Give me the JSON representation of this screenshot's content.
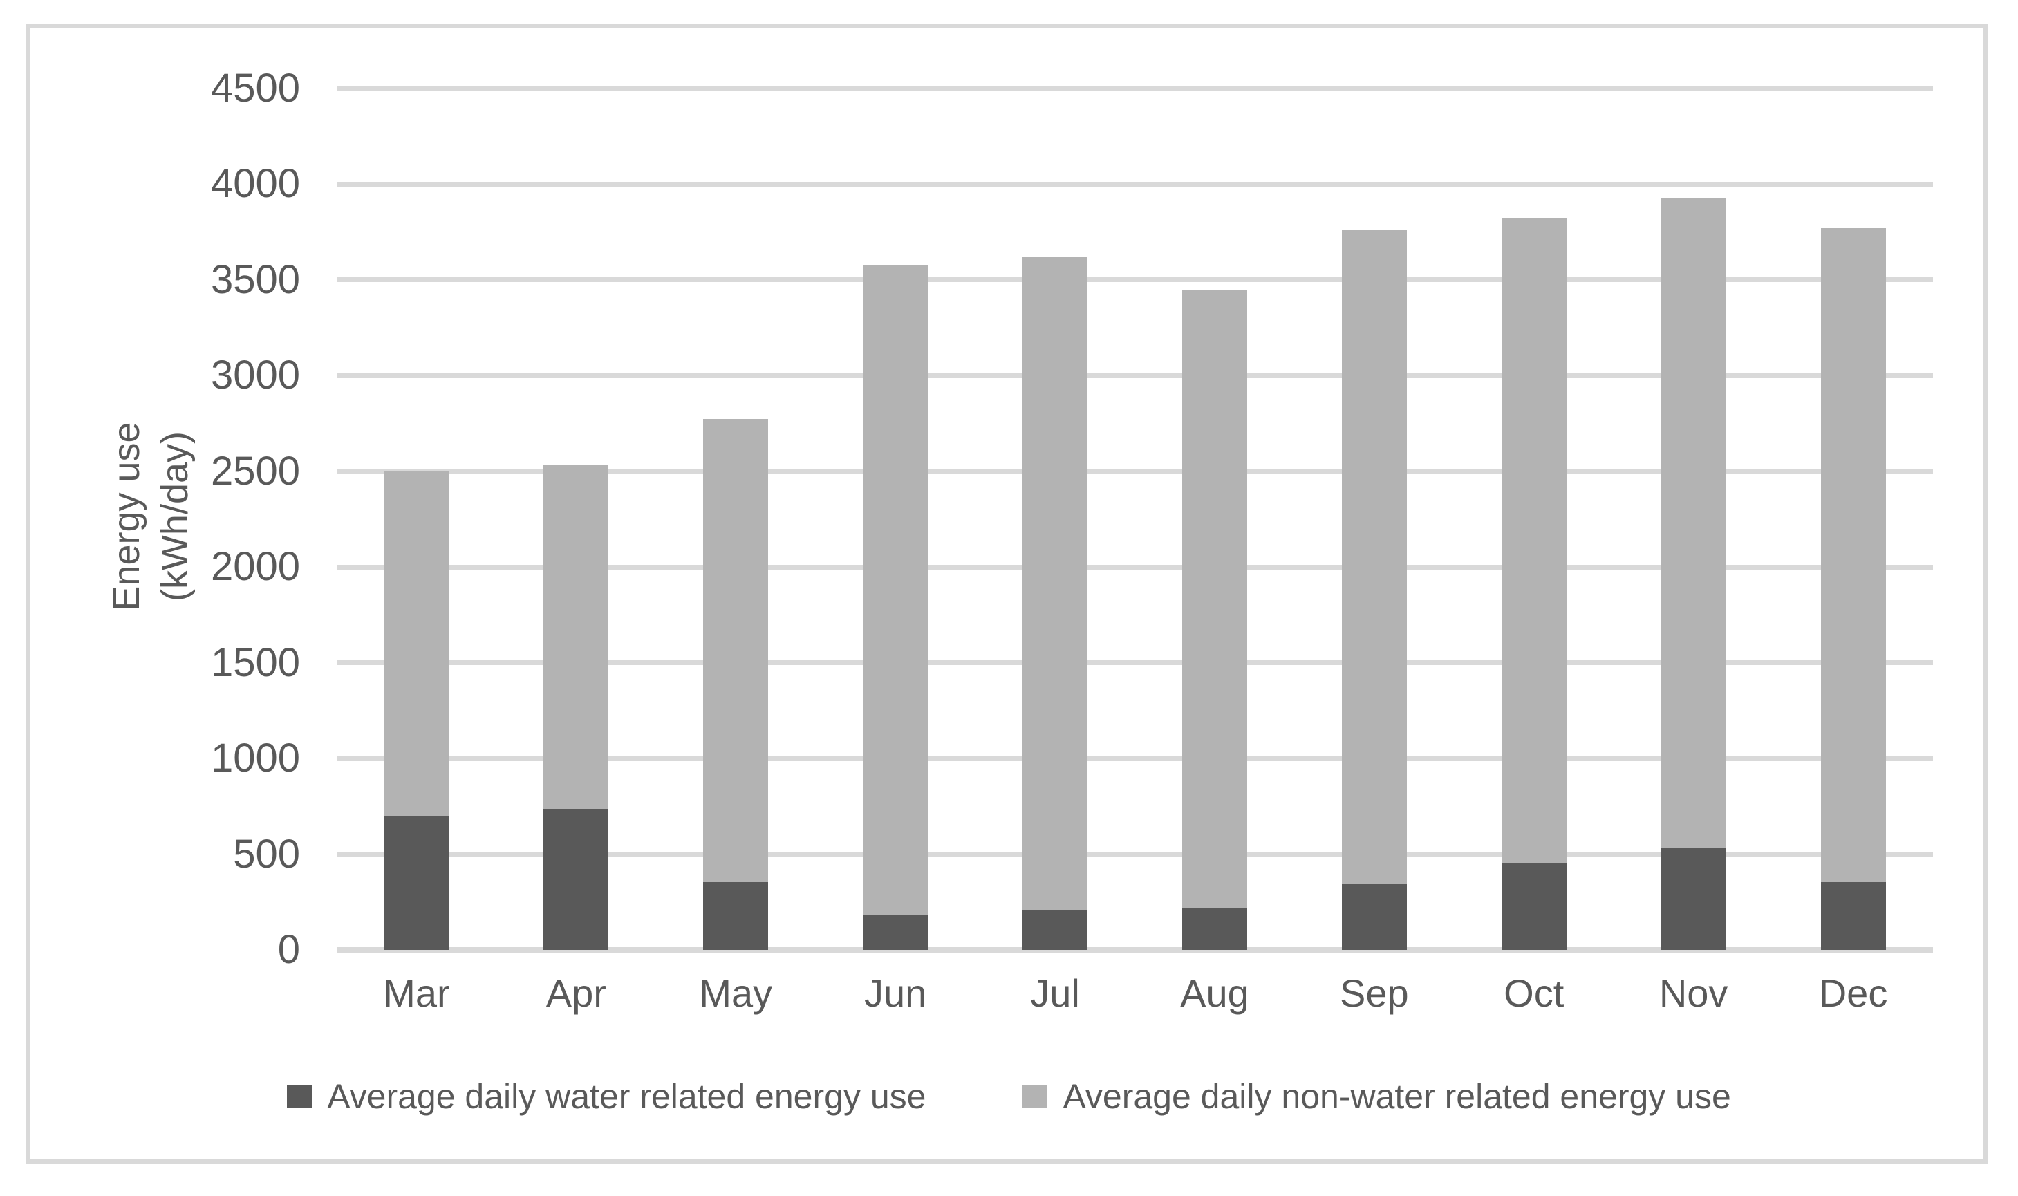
{
  "colors": {
    "background": "#ffffff",
    "border": "#d9d9d9",
    "gridline": "#d9d9d9",
    "axis_text": "#595959",
    "series_water": "#595959",
    "series_nonwater": "#b3b3b3"
  },
  "y_axis": {
    "title_line1": "Energy use",
    "title_line2": "(kWh/day)"
  },
  "chart_data": {
    "type": "bar",
    "stacked": true,
    "grid": true,
    "legend_position": "bottom",
    "categories": [
      "Mar",
      "Apr",
      "May",
      "Jun",
      "Jul",
      "Aug",
      "Sep",
      "Oct",
      "Nov",
      "Dec"
    ],
    "series": [
      {
        "name": "Average daily water related energy use",
        "color": "#595959",
        "values": [
          700,
          735,
          355,
          180,
          205,
          220,
          345,
          450,
          535,
          355
        ]
      },
      {
        "name": "Average daily non-water related energy use",
        "color": "#b3b3b3",
        "values": [
          1800,
          1800,
          2420,
          3395,
          3415,
          3230,
          3420,
          3370,
          3390,
          3415
        ]
      }
    ],
    "stack_totals": [
      2500,
      2535,
      2775,
      3575,
      3620,
      3450,
      3765,
      3820,
      3925,
      3770
    ],
    "title": "",
    "xlabel": "",
    "ylabel_line1": "Energy use",
    "ylabel_line2": "(kWh/day)",
    "ylim": [
      0,
      4500
    ],
    "ytick_step": 500,
    "yticks": [
      0,
      500,
      1000,
      1500,
      2000,
      2500,
      3000,
      3500,
      4000,
      4500
    ]
  }
}
